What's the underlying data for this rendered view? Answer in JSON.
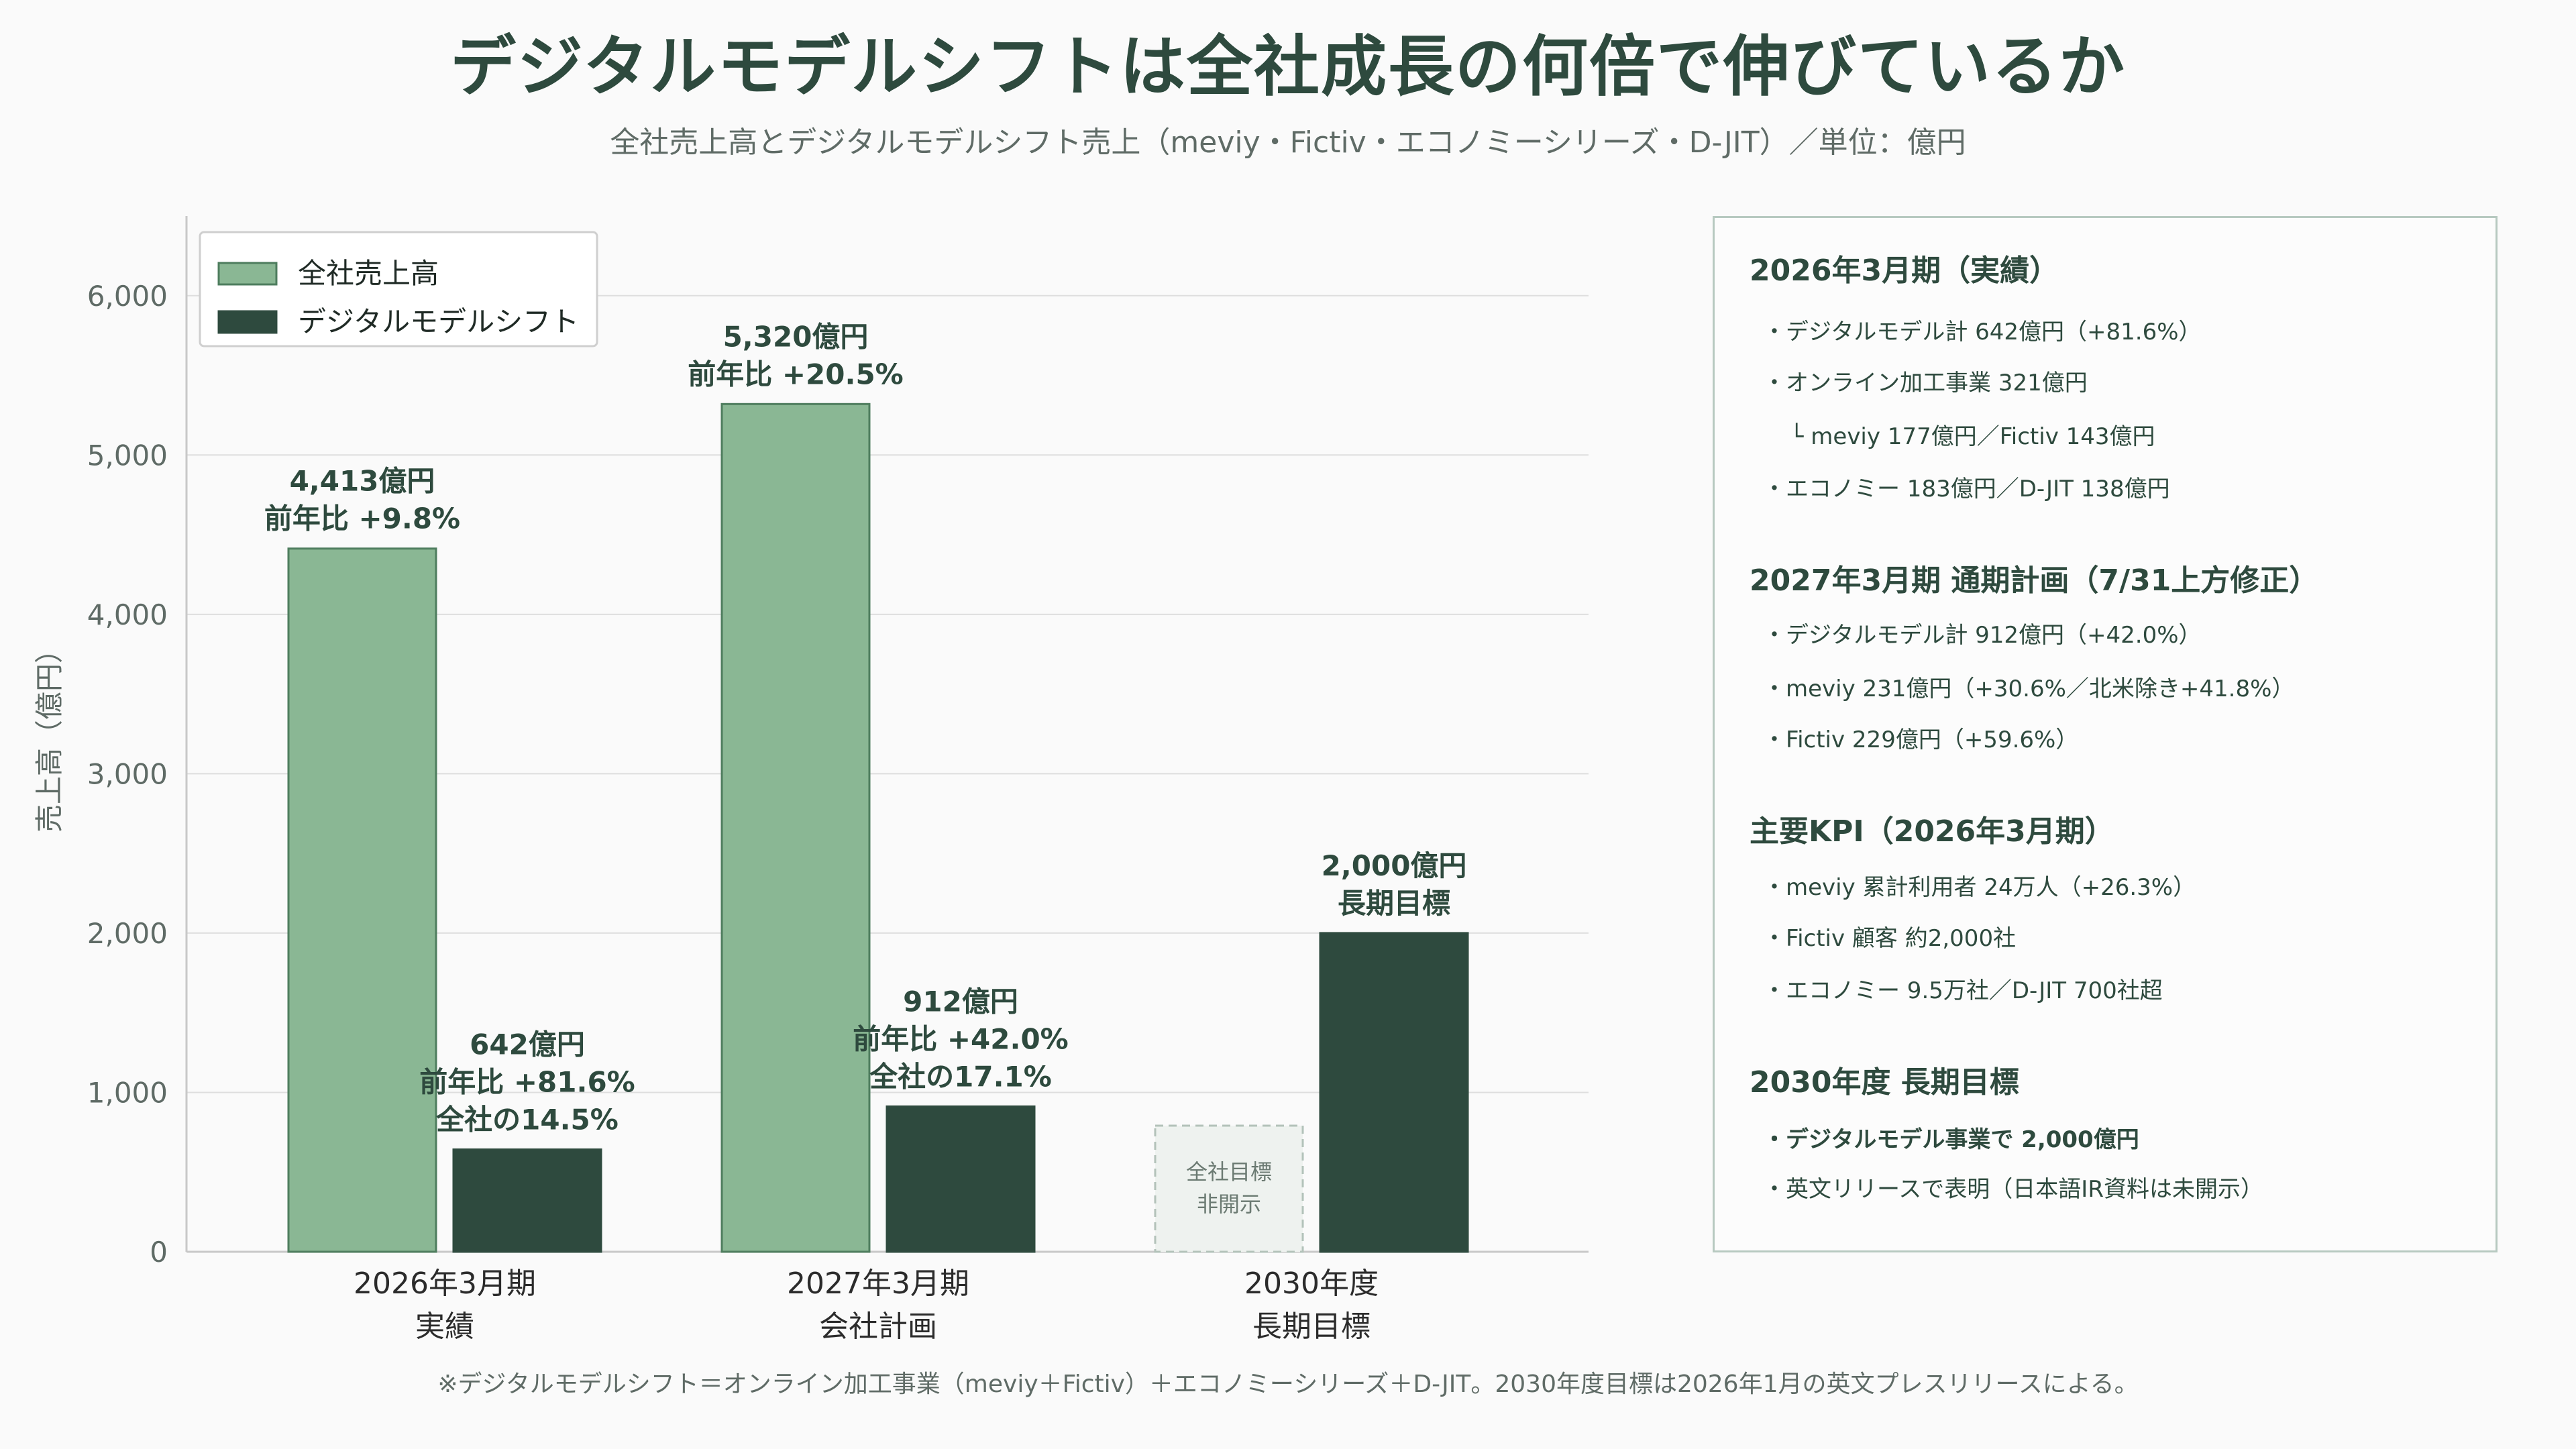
{
  "title": "デジタルモデルシフトは全社成長の何倍で伸びているか",
  "subtitle": "全社売上高とデジタルモデルシフト売上（meviy・Fictiv・エコノミーシリーズ・D-JIT）／単位：億円",
  "footnote": "※デジタルモデルシフト＝オンライン加工事業（meviy＋Fictiv）＋エコノミーシリーズ＋D-JIT。2030年度目標は2026年1月の英文プレスリリースによる。",
  "colors": {
    "total": "#8ab794",
    "total_border": "#4e7d5e",
    "digital": "#2e4a3e",
    "grid": "#dedede",
    "axis_text": "#5f6b66"
  },
  "chart_data": {
    "type": "bar",
    "ylabel": "売上高（億円）",
    "ylim": [
      0,
      6500
    ],
    "yticks": [
      0,
      1000,
      2000,
      3000,
      4000,
      5000,
      6000
    ],
    "ytick_labels": [
      "0",
      "1,000",
      "2,000",
      "3,000",
      "4,000",
      "5,000",
      "6,000"
    ],
    "grid": true,
    "legend_position": "top-left",
    "categories": [
      {
        "label": "2026年3月期",
        "sublabel": "実績"
      },
      {
        "label": "2027年3月期",
        "sublabel": "会社計画"
      },
      {
        "label": "2030年度",
        "sublabel": "長期目標"
      }
    ],
    "series": [
      {
        "name": "全社売上高",
        "values": [
          4413,
          5320,
          null
        ],
        "labels": [
          [
            "4,413億円",
            "前年比 +9.8%"
          ],
          [
            "5,320億円",
            "前年比 +20.5%"
          ],
          []
        ]
      },
      {
        "name": "デジタルモデルシフト",
        "values": [
          642,
          912,
          2000
        ],
        "labels": [
          [
            "642億円",
            "前年比 +81.6%",
            "全社の14.5%"
          ],
          [
            "912億円",
            "前年比 +42.0%",
            "全社の17.1%"
          ],
          [
            "2,000億円",
            "長期目標"
          ]
        ]
      }
    ],
    "undisclosed_note": [
      "全社目標",
      "非開示"
    ]
  },
  "panel": {
    "sections": [
      {
        "heading": "2026年3月期（実績）",
        "items": [
          {
            "text": "・デジタルモデル計 642億円（+81.6%）",
            "style": "normal"
          },
          {
            "text": "・オンライン加工事業 321億円",
            "style": "normal"
          },
          {
            "text": "└ meviy 177億円／Fictiv 143億円",
            "style": "sub"
          },
          {
            "text": "・エコノミー 183億円／D-JIT 138億円",
            "style": "normal"
          }
        ]
      },
      {
        "heading": "2027年3月期 通期計画（7/31上方修正）",
        "items": [
          {
            "text": "・デジタルモデル計 912億円（+42.0%）",
            "style": "normal"
          },
          {
            "text": "・meviy 231億円（+30.6%／北米除き+41.8%）",
            "style": "normal"
          },
          {
            "text": "・Fictiv 229億円（+59.6%）",
            "style": "normal"
          }
        ]
      },
      {
        "heading": "主要KPI（2026年3月期）",
        "items": [
          {
            "text": "・meviy 累計利用者 24万人（+26.3%）",
            "style": "normal"
          },
          {
            "text": "・Fictiv 顧客 約2,000社",
            "style": "normal"
          },
          {
            "text": "・エコノミー 9.5万社／D-JIT 700社超",
            "style": "normal"
          }
        ]
      },
      {
        "heading": "2030年度 長期目標",
        "items": [
          {
            "text": "・デジタルモデル事業で 2,000億円",
            "style": "bold"
          },
          {
            "text": "・英文リリースで表明（日本語IR資料は未開示）",
            "style": "normal"
          }
        ]
      }
    ]
  }
}
